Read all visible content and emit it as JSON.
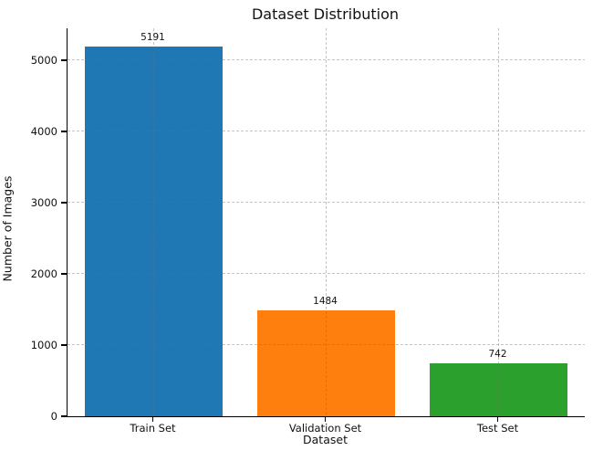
{
  "chart_data": {
    "type": "bar",
    "title": "Dataset Distribution",
    "xlabel": "Dataset",
    "ylabel": "Number of Images",
    "categories": [
      "Train Set",
      "Validation Set",
      "Test Set"
    ],
    "values": [
      5191,
      1484,
      742
    ],
    "value_labels": [
      "5191",
      "1484",
      "742"
    ],
    "bar_colors": [
      "#1f77b4",
      "#ff7f0e",
      "#2ca02c"
    ],
    "yticks": [
      0,
      1000,
      2000,
      3000,
      4000,
      5000
    ],
    "ytick_labels": [
      "0",
      "1000",
      "2000",
      "3000",
      "4000",
      "5000"
    ],
    "ylim": [
      0,
      5450
    ],
    "grid": "dashed, both axes, drawn above bars",
    "grid_color": "#c3c3c3",
    "legend": null
  }
}
